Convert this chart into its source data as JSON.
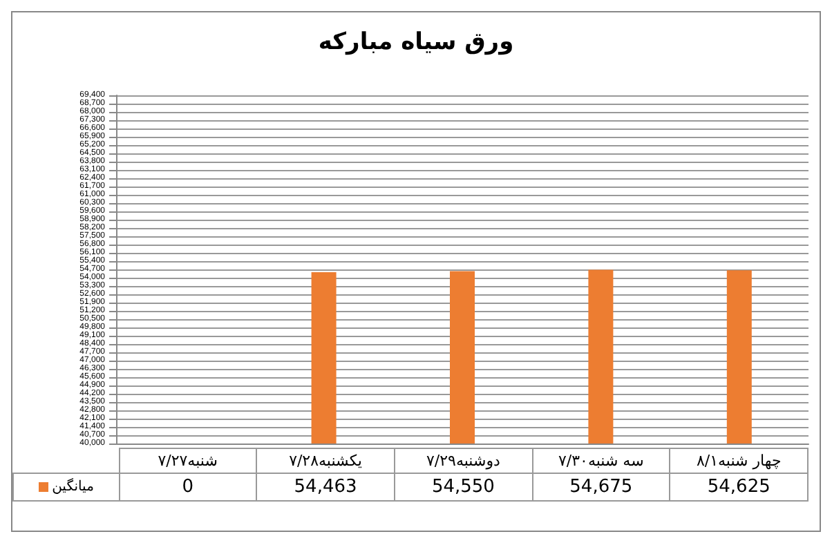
{
  "chart_data": {
    "type": "bar",
    "title": "ورق سیاه مبارکه",
    "categories": [
      "شنبه۷/۲۷",
      "یکشنبه۷/۲۸",
      "دوشنبه۷/۲۹",
      "سه شنبه۷/۳۰",
      "چهار شنبه۸/۱"
    ],
    "series": [
      {
        "name": "میانگین",
        "color": "#ed7d31",
        "values": [
          null,
          54463,
          54550,
          54675,
          54625
        ],
        "value_labels": [
          "0",
          "54,463",
          "54,550",
          "54,675",
          "54,625"
        ]
      }
    ],
    "ylim": [
      40000,
      69400
    ],
    "yticks": [
      {
        "value": 40000,
        "label": "40,000"
      },
      {
        "value": 40700,
        "label": "40,700"
      },
      {
        "value": 41400,
        "label": "41,400"
      },
      {
        "value": 42100,
        "label": "42,100"
      },
      {
        "value": 42800,
        "label": "42,800"
      },
      {
        "value": 43500,
        "label": "43,500"
      },
      {
        "value": 44200,
        "label": "44,200"
      },
      {
        "value": 44900,
        "label": "44,900"
      },
      {
        "value": 45600,
        "label": "45,600"
      },
      {
        "value": 46300,
        "label": "46,300"
      },
      {
        "value": 47000,
        "label": "47,000"
      },
      {
        "value": 47700,
        "label": "47,700"
      },
      {
        "value": 48400,
        "label": "48,400"
      },
      {
        "value": 49100,
        "label": "49,100"
      },
      {
        "value": 49800,
        "label": "49,800"
      },
      {
        "value": 50500,
        "label": "50,500"
      },
      {
        "value": 51200,
        "label": "51,200"
      },
      {
        "value": 51900,
        "label": "51,900"
      },
      {
        "value": 52600,
        "label": "52,600"
      },
      {
        "value": 53300,
        "label": "53,300"
      },
      {
        "value": 54000,
        "label": "54,000"
      },
      {
        "value": 54700,
        "label": "54,700"
      },
      {
        "value": 55400,
        "label": "55,400"
      },
      {
        "value": 56100,
        "label": "56,100"
      },
      {
        "value": 56800,
        "label": "56,800"
      },
      {
        "value": 57500,
        "label": "57,500"
      },
      {
        "value": 58200,
        "label": "58,200"
      },
      {
        "value": 58900,
        "label": "58,900"
      },
      {
        "value": 59600,
        "label": "59,600"
      },
      {
        "value": 60300,
        "label": "60,300"
      },
      {
        "value": 61000,
        "label": "61,000"
      },
      {
        "value": 61700,
        "label": "61,700"
      },
      {
        "value": 62400,
        "label": "62,400"
      },
      {
        "value": 63100,
        "label": "63,100"
      },
      {
        "value": 63800,
        "label": "63,800"
      },
      {
        "value": 64500,
        "label": "64,500"
      },
      {
        "value": 65200,
        "label": "65,200"
      },
      {
        "value": 65900,
        "label": "65,900"
      },
      {
        "value": 66600,
        "label": "66,600"
      },
      {
        "value": 67300,
        "label": "67,300"
      },
      {
        "value": 68000,
        "label": "68,000"
      },
      {
        "value": 68700,
        "label": "68,700"
      },
      {
        "value": 69400,
        "label": "69,400"
      }
    ],
    "grid": "y",
    "legend": "bottom"
  }
}
